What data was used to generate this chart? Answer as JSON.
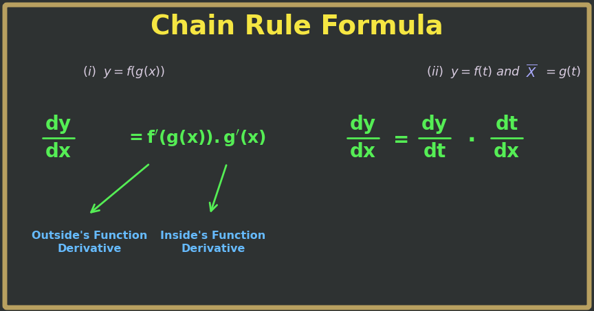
{
  "title": "Chain Rule Formula",
  "title_color": "#F5E642",
  "title_fontsize": 28,
  "background_color": "#2E3232",
  "border_color": "#B8A060",
  "border_linewidth": 5,
  "label_color": "#D8CCE0",
  "formula_green": "#55EE55",
  "formula_blue": "#66BBFF",
  "outside_label": "Outside's Function\nDerivative",
  "inside_label": "Inside's Function\nDerivative"
}
